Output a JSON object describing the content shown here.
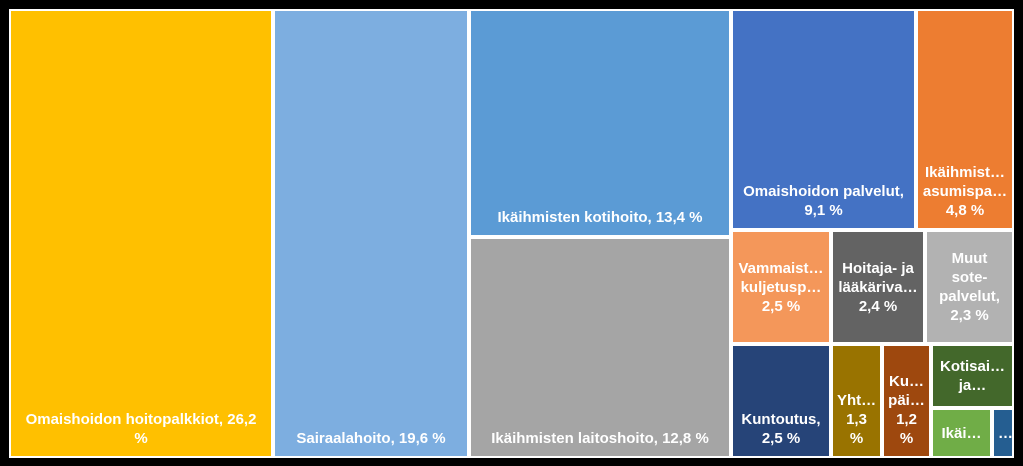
{
  "chart_data": {
    "type": "treemap",
    "title": "",
    "items": [
      {
        "label": "Omaishoidon hoitopalkkiot, 26,2\n%",
        "value": 26.2,
        "color": "#FFC000"
      },
      {
        "label": "Sairaalahoito, 19,6 %",
        "value": 19.6,
        "color": "#7DAEE0"
      },
      {
        "label": "Ikäihmisten kotihoito, 13,4 %",
        "value": 13.4,
        "color": "#5B9BD5"
      },
      {
        "label": "Ikäihmisten laitoshoito, 12,8 %",
        "value": 12.8,
        "color": "#A5A5A5"
      },
      {
        "label": "Omaishoidon palvelut,\n9,1 %",
        "value": 9.1,
        "color": "#4472C4"
      },
      {
        "label": "Ikäihmist…\nasumispa…\n4,8 %",
        "value": 4.8,
        "color": "#ED7D31"
      },
      {
        "label": "Vammaist…\nkuljetusp…\n2,5 %",
        "value": 2.5,
        "color": "#F4975A"
      },
      {
        "label": "Hoitaja- ja\nlääkäriva…\n2,4 %",
        "value": 2.4,
        "color": "#636363"
      },
      {
        "label": "Muut\nsote-\npalvelut,\n2,3 %",
        "value": 2.3,
        "color": "#B2B2B2"
      },
      {
        "label": "Kuntoutus,\n2,5 %",
        "value": 2.5,
        "color": "#264478"
      },
      {
        "label": "Yht…\n1,3\n%",
        "value": 1.3,
        "color": "#997300"
      },
      {
        "label": "Ku…\npäi…\n1,2\n%",
        "value": 1.2,
        "color": "#9E480E"
      },
      {
        "label": "Kotisai…\nja…",
        "value": 0.9,
        "color": "#43682B"
      },
      {
        "label": "Ikäi…",
        "value": 0.5,
        "color": "#70AD47"
      },
      {
        "label": "…",
        "value": 0.2,
        "color": "#255E91"
      }
    ]
  }
}
